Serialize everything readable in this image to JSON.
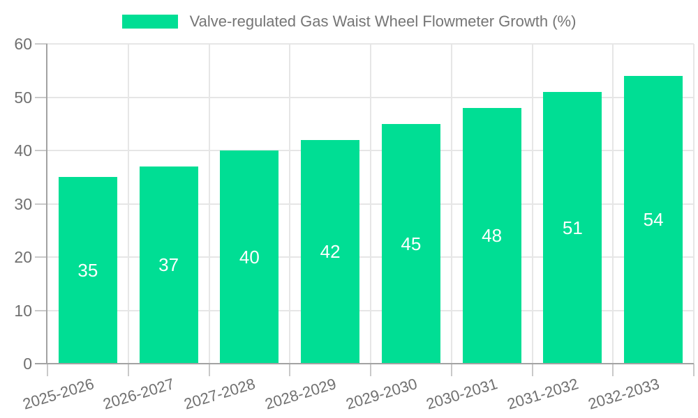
{
  "chart_data": {
    "type": "bar",
    "title": "Valve-regulated Gas Waist Wheel Flowmeter Growth (%)",
    "categories": [
      "2025-2026",
      "2026-2027",
      "2027-2028",
      "2028-2029",
      "2029-2030",
      "2030-2031",
      "2031-2032",
      "2032-2033"
    ],
    "values": [
      35,
      37,
      40,
      42,
      45,
      48,
      51,
      54
    ],
    "xlabel": "",
    "ylabel": "",
    "ylim": [
      0,
      60
    ],
    "yticks": [
      0,
      10,
      20,
      30,
      40,
      50,
      60
    ],
    "grid": true,
    "legend_position": "top-center",
    "value_labels": "inside-center",
    "colors": {
      "bar": "#00DE94",
      "bar_value_label": "#FFFFFF",
      "legend_text": "#757575",
      "axis_text": "#707070",
      "axis_line": "#A2A2A2",
      "tick_mark": "#C9C9C9",
      "gridline": "#E6E6E6",
      "background": "#FFFFFF"
    }
  }
}
